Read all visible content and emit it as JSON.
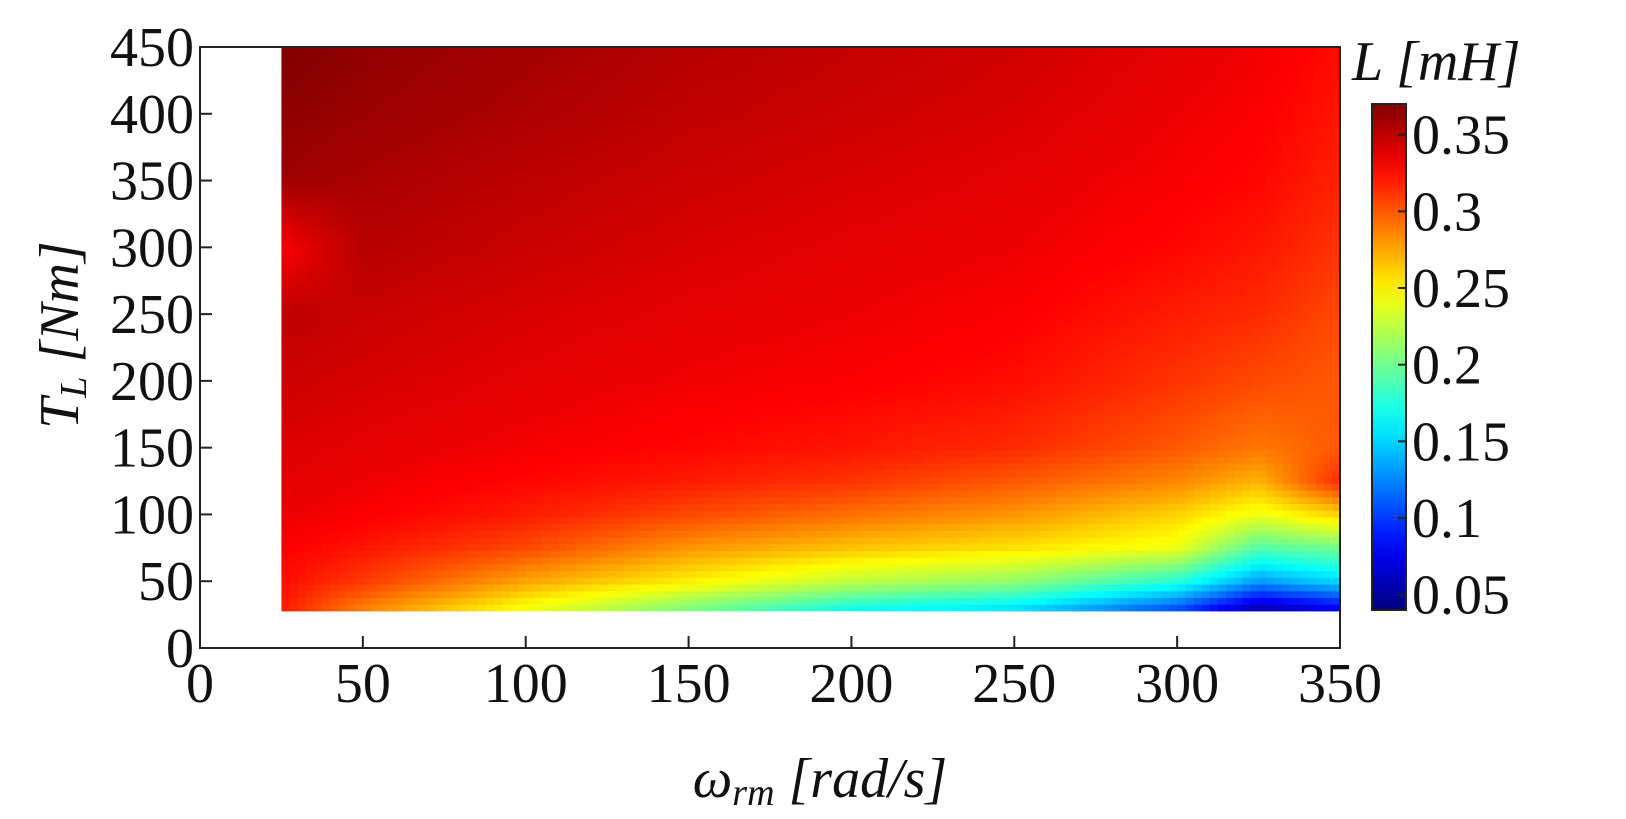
{
  "chart_data": {
    "type": "heatmap",
    "title": "",
    "xlabel": {
      "symbol": "ω",
      "subscript": "rm",
      "unit": "[rad/s]"
    },
    "ylabel": {
      "symbol": "T",
      "subscript": "L",
      "unit": "[Nm]"
    },
    "colorbar_label": "L [mH]",
    "xlim": [
      0,
      350
    ],
    "ylim": [
      0,
      450
    ],
    "x_ticks": [
      0,
      50,
      100,
      150,
      200,
      250,
      300,
      350
    ],
    "y_ticks": [
      0,
      50,
      100,
      150,
      200,
      250,
      300,
      350,
      400,
      450
    ],
    "x_tick_labels": [
      "0",
      "50",
      "100",
      "150",
      "200",
      "250",
      "300",
      "350"
    ],
    "y_tick_labels": [
      "0",
      "50",
      "100",
      "150",
      "200",
      "250",
      "300",
      "350",
      "400",
      "450"
    ],
    "colorbar_range": [
      0.04,
      0.37
    ],
    "colorbar_ticks": [
      0.05,
      0.1,
      0.15,
      0.2,
      0.25,
      0.3,
      0.35
    ],
    "colorbar_tick_labels": [
      "0.05",
      "0.1",
      "0.15",
      "0.2",
      "0.25",
      "0.3",
      "0.35"
    ],
    "colormap": "jet",
    "grid": false,
    "data_extent": {
      "x": [
        25,
        350
      ],
      "y": [
        28,
        450
      ]
    },
    "x": [
      25,
      50,
      100,
      150,
      200,
      250,
      300,
      325,
      350
    ],
    "y": [
      28,
      50,
      75,
      100,
      125,
      150,
      200,
      250,
      300,
      350,
      400,
      450
    ],
    "z": [
      [
        0.32,
        0.285,
        0.24,
        0.2,
        0.165,
        0.15,
        0.1,
        0.05,
        0.07
      ],
      [
        0.325,
        0.31,
        0.275,
        0.25,
        0.225,
        0.21,
        0.175,
        0.13,
        0.15
      ],
      [
        0.33,
        0.322,
        0.305,
        0.28,
        0.265,
        0.255,
        0.24,
        0.19,
        0.2
      ],
      [
        0.335,
        0.33,
        0.32,
        0.305,
        0.292,
        0.28,
        0.26,
        0.24,
        0.26
      ],
      [
        0.338,
        0.334,
        0.327,
        0.32,
        0.312,
        0.3,
        0.285,
        0.27,
        0.315
      ],
      [
        0.34,
        0.337,
        0.332,
        0.327,
        0.322,
        0.315,
        0.3,
        0.29,
        0.3
      ],
      [
        0.345,
        0.342,
        0.337,
        0.333,
        0.33,
        0.325,
        0.312,
        0.305,
        0.3
      ],
      [
        0.35,
        0.346,
        0.341,
        0.337,
        0.334,
        0.33,
        0.32,
        0.315,
        0.305
      ],
      [
        0.33,
        0.352,
        0.346,
        0.341,
        0.337,
        0.334,
        0.327,
        0.322,
        0.312
      ],
      [
        0.36,
        0.356,
        0.35,
        0.345,
        0.341,
        0.337,
        0.331,
        0.327,
        0.318
      ],
      [
        0.365,
        0.361,
        0.355,
        0.349,
        0.345,
        0.341,
        0.334,
        0.33,
        0.322
      ],
      [
        0.37,
        0.364,
        0.358,
        0.352,
        0.348,
        0.344,
        0.337,
        0.333,
        0.325
      ]
    ]
  }
}
